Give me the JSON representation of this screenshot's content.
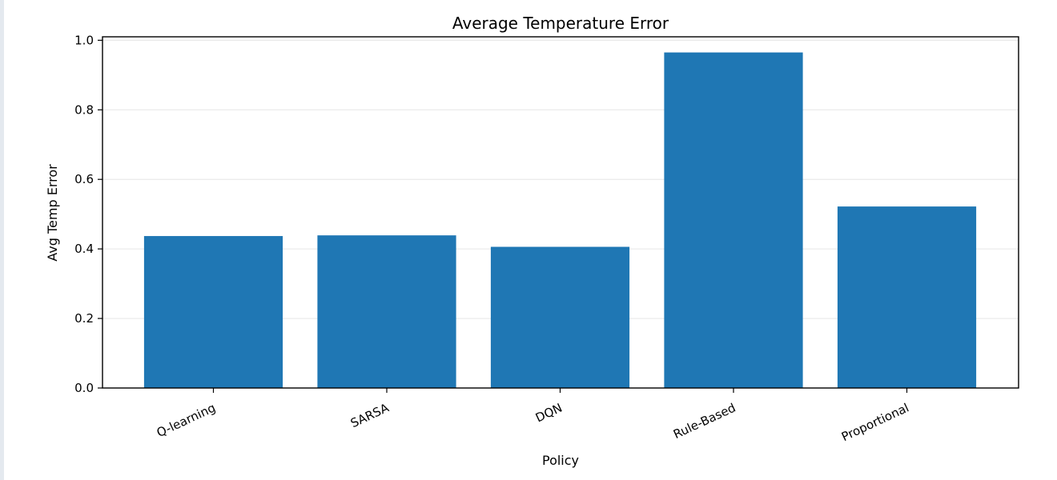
{
  "chart_data": {
    "type": "bar",
    "title": "Average Temperature Error",
    "xlabel": "Policy",
    "ylabel": "Avg Temp Error",
    "categories": [
      "Q-learning",
      "SARSA",
      "DQN",
      "Rule-Based",
      "Proportional"
    ],
    "values": [
      0.437,
      0.439,
      0.406,
      0.965,
      0.522
    ],
    "ylim": [
      0,
      1.01
    ],
    "yticks": [
      "0.0",
      "0.2",
      "0.4",
      "0.6",
      "0.8",
      "1.0"
    ],
    "grid": "horizontal",
    "legend": "none",
    "bar_color": "#1f77b4"
  }
}
